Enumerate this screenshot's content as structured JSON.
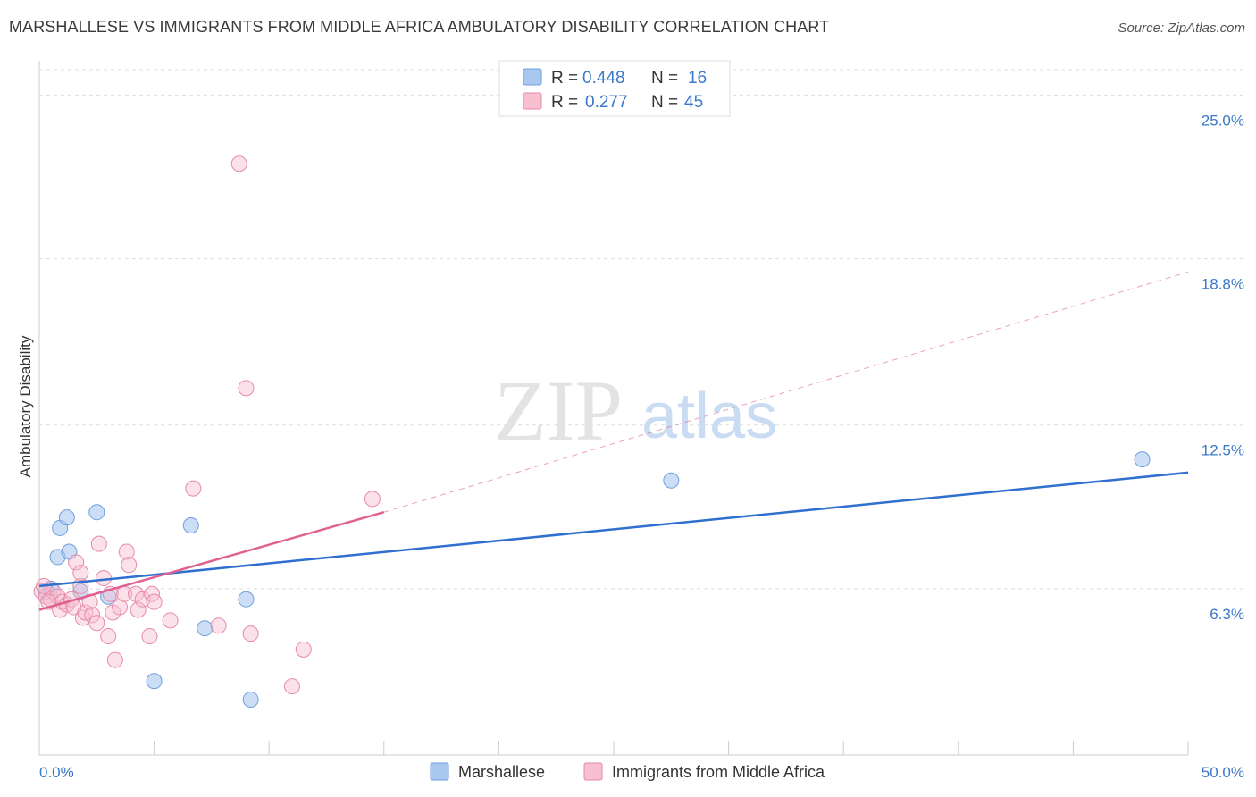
{
  "title": "MARSHALLESE VS IMMIGRANTS FROM MIDDLE AFRICA AMBULATORY DISABILITY CORRELATION CHART",
  "source": "Source: ZipAtlas.com",
  "watermark": {
    "zip": "ZIP",
    "atlas": "atlas"
  },
  "legend_top": [
    {
      "r_label": "R =",
      "r_value": "0.448",
      "n_label": "N =",
      "n_value": "16",
      "color": "#a9c8f0",
      "stroke": "#6f9fdc"
    },
    {
      "r_label": "R =",
      "r_value": "0.277",
      "n_label": "N =",
      "n_value": "45",
      "color": "#f7bfd0",
      "stroke": "#e88aa8"
    }
  ],
  "chart_data": {
    "type": "scatter",
    "title": "MARSHALLESE VS IMMIGRANTS FROM MIDDLE AFRICA AMBULATORY DISABILITY CORRELATION CHART",
    "xlabel": "",
    "ylabel": "Ambulatory Disability",
    "xlim": [
      0,
      50
    ],
    "ylim": [
      0,
      26.3
    ],
    "x_tick_labels": [
      "0.0%",
      "50.0%"
    ],
    "y_ticks": [
      6.3,
      12.5,
      18.8,
      25.0
    ],
    "y_tick_labels": [
      "6.3%",
      "12.5%",
      "18.8%",
      "25.0%"
    ],
    "series": [
      {
        "name": "Marshallese",
        "color": "#a9c8f0",
        "stroke": "#6f9fdc",
        "line_color": "#2f6fcf",
        "trend": {
          "x0": 0,
          "y0": 6.4,
          "x1": 50,
          "y1": 10.7,
          "dashed_to": null
        },
        "points": [
          {
            "x": 0.5,
            "y": 6.3
          },
          {
            "x": 0.8,
            "y": 7.5
          },
          {
            "x": 0.9,
            "y": 8.6
          },
          {
            "x": 1.2,
            "y": 9.0
          },
          {
            "x": 1.3,
            "y": 7.7
          },
          {
            "x": 1.8,
            "y": 6.2
          },
          {
            "x": 2.5,
            "y": 9.2
          },
          {
            "x": 3.0,
            "y": 6.0
          },
          {
            "x": 5.0,
            "y": 2.8
          },
          {
            "x": 6.6,
            "y": 8.7
          },
          {
            "x": 7.2,
            "y": 4.8
          },
          {
            "x": 9.0,
            "y": 5.9
          },
          {
            "x": 9.2,
            "y": 2.1
          },
          {
            "x": 27.5,
            "y": 10.4
          },
          {
            "x": 48.0,
            "y": 11.2
          },
          {
            "x": 0.3,
            "y": 6.2
          }
        ]
      },
      {
        "name": "Immigrants from Middle Africa",
        "color": "#f7bfd0",
        "stroke": "#e88aa8",
        "line_color": "#e06090",
        "trend": {
          "x0": 0,
          "y0": 5.5,
          "x1": 15,
          "y1": 9.2,
          "dashed_to": {
            "x": 50,
            "y": 18.3
          }
        },
        "points": [
          {
            "x": 0.1,
            "y": 6.2
          },
          {
            "x": 0.3,
            "y": 6.0
          },
          {
            "x": 0.5,
            "y": 5.9
          },
          {
            "x": 0.6,
            "y": 6.2
          },
          {
            "x": 0.8,
            "y": 6.0
          },
          {
            "x": 0.9,
            "y": 5.5
          },
          {
            "x": 1.0,
            "y": 5.8
          },
          {
            "x": 1.2,
            "y": 5.7
          },
          {
            "x": 1.4,
            "y": 5.9
          },
          {
            "x": 1.5,
            "y": 5.6
          },
          {
            "x": 1.6,
            "y": 7.3
          },
          {
            "x": 1.8,
            "y": 6.4
          },
          {
            "x": 1.8,
            "y": 6.9
          },
          {
            "x": 1.9,
            "y": 5.2
          },
          {
            "x": 2.0,
            "y": 5.4
          },
          {
            "x": 2.2,
            "y": 5.8
          },
          {
            "x": 2.3,
            "y": 5.3
          },
          {
            "x": 2.5,
            "y": 5.0
          },
          {
            "x": 2.6,
            "y": 8.0
          },
          {
            "x": 2.8,
            "y": 6.7
          },
          {
            "x": 3.0,
            "y": 4.5
          },
          {
            "x": 3.1,
            "y": 6.1
          },
          {
            "x": 3.2,
            "y": 5.4
          },
          {
            "x": 3.3,
            "y": 3.6
          },
          {
            "x": 3.5,
            "y": 5.6
          },
          {
            "x": 3.7,
            "y": 6.1
          },
          {
            "x": 3.8,
            "y": 7.7
          },
          {
            "x": 3.9,
            "y": 7.2
          },
          {
            "x": 4.2,
            "y": 6.1
          },
          {
            "x": 4.3,
            "y": 5.5
          },
          {
            "x": 4.5,
            "y": 5.9
          },
          {
            "x": 4.8,
            "y": 4.5
          },
          {
            "x": 4.9,
            "y": 6.1
          },
          {
            "x": 5.0,
            "y": 5.8
          },
          {
            "x": 5.7,
            "y": 5.1
          },
          {
            "x": 6.7,
            "y": 10.1
          },
          {
            "x": 7.8,
            "y": 4.9
          },
          {
            "x": 8.7,
            "y": 22.4
          },
          {
            "x": 9.0,
            "y": 13.9
          },
          {
            "x": 9.2,
            "y": 4.6
          },
          {
            "x": 11.0,
            "y": 2.6
          },
          {
            "x": 11.5,
            "y": 4.0
          },
          {
            "x": 14.5,
            "y": 9.7
          },
          {
            "x": 0.2,
            "y": 6.4
          },
          {
            "x": 0.4,
            "y": 5.8
          }
        ]
      }
    ]
  },
  "legend_bottom": [
    {
      "label": "Marshallese",
      "color": "#a9c8f0",
      "stroke": "#6f9fdc"
    },
    {
      "label": "Immigrants from Middle Africa",
      "color": "#f7bfd0",
      "stroke": "#e88aa8"
    }
  ]
}
